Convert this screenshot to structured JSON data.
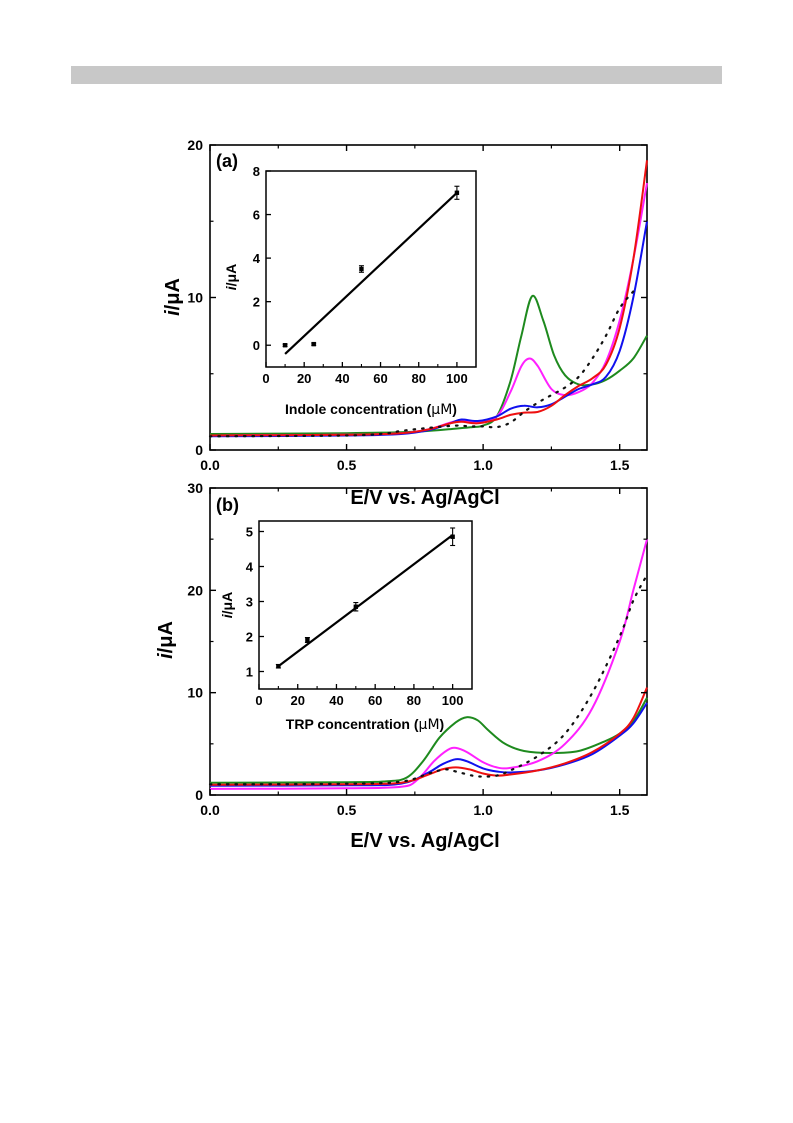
{
  "chart_data": [
    {
      "type": "line",
      "panel_label": "(a)",
      "xlabel": "E/V vs. Ag/AgCl",
      "ylabel": "i/μA",
      "ylabel_italic": "i",
      "ylabel_unit": "/μA",
      "xlim": [
        0,
        1.6
      ],
      "ylim": [
        0,
        20
      ],
      "xticks": [
        "0.0",
        "0.5",
        "1.0",
        "1.5"
      ],
      "yticks": [
        "0",
        "10",
        "20"
      ],
      "colors": {
        "green": "#1e8a1e",
        "magenta": "#ff20ff",
        "blue": "#1010ee",
        "red": "#ee1010",
        "dotted": "#111111"
      },
      "series": [
        {
          "color": "green",
          "points": [
            [
              0,
              1.05
            ],
            [
              0.5,
              1.1
            ],
            [
              0.75,
              1.2
            ],
            [
              0.9,
              1.4
            ],
            [
              0.96,
              1.5
            ],
            [
              1.0,
              1.6
            ],
            [
              1.05,
              2.2
            ],
            [
              1.1,
              4.5
            ],
            [
              1.14,
              7.5
            ],
            [
              1.18,
              10.1
            ],
            [
              1.22,
              8.5
            ],
            [
              1.26,
              6.2
            ],
            [
              1.3,
              4.9
            ],
            [
              1.35,
              4.3
            ],
            [
              1.4,
              4.3
            ],
            [
              1.45,
              4.6
            ],
            [
              1.5,
              5.2
            ],
            [
              1.55,
              6.0
            ],
            [
              1.6,
              7.5
            ]
          ]
        },
        {
          "color": "magenta",
          "points": [
            [
              0,
              0.95
            ],
            [
              0.5,
              1.0
            ],
            [
              0.7,
              1.1
            ],
            [
              0.8,
              1.35
            ],
            [
              0.88,
              1.8
            ],
            [
              0.92,
              1.95
            ],
            [
              0.98,
              1.8
            ],
            [
              1.05,
              2.2
            ],
            [
              1.1,
              3.8
            ],
            [
              1.14,
              5.5
            ],
            [
              1.17,
              6.0
            ],
            [
              1.2,
              5.5
            ],
            [
              1.25,
              4.0
            ],
            [
              1.3,
              3.6
            ],
            [
              1.35,
              3.8
            ],
            [
              1.4,
              4.4
            ],
            [
              1.45,
              5.8
            ],
            [
              1.5,
              8.5
            ],
            [
              1.55,
              12.5
            ],
            [
              1.6,
              17.5
            ]
          ]
        },
        {
          "color": "blue",
          "points": [
            [
              0,
              0.9
            ],
            [
              0.5,
              0.95
            ],
            [
              0.7,
              1.05
            ],
            [
              0.8,
              1.3
            ],
            [
              0.88,
              1.75
            ],
            [
              0.92,
              2.0
            ],
            [
              0.98,
              1.9
            ],
            [
              1.05,
              2.2
            ],
            [
              1.1,
              2.7
            ],
            [
              1.15,
              2.9
            ],
            [
              1.2,
              2.8
            ],
            [
              1.25,
              3.0
            ],
            [
              1.3,
              3.5
            ],
            [
              1.35,
              4.0
            ],
            [
              1.4,
              4.3
            ],
            [
              1.45,
              4.8
            ],
            [
              1.5,
              6.5
            ],
            [
              1.55,
              10.0
            ],
            [
              1.6,
              15.0
            ]
          ]
        },
        {
          "color": "red",
          "points": [
            [
              0,
              0.95
            ],
            [
              0.5,
              1.0
            ],
            [
              0.7,
              1.1
            ],
            [
              0.8,
              1.35
            ],
            [
              0.88,
              1.75
            ],
            [
              0.92,
              1.85
            ],
            [
              0.98,
              1.75
            ],
            [
              1.05,
              2.0
            ],
            [
              1.1,
              2.3
            ],
            [
              1.15,
              2.45
            ],
            [
              1.2,
              2.5
            ],
            [
              1.25,
              2.9
            ],
            [
              1.3,
              3.6
            ],
            [
              1.35,
              4.2
            ],
            [
              1.4,
              4.7
            ],
            [
              1.45,
              5.6
            ],
            [
              1.5,
              8.0
            ],
            [
              1.55,
              12.5
            ],
            [
              1.6,
              19.0
            ]
          ]
        },
        {
          "color": "dotted",
          "dashed": true,
          "points": [
            [
              0,
              0.9
            ],
            [
              0.5,
              0.95
            ],
            [
              0.65,
              1.1
            ],
            [
              0.7,
              1.25
            ],
            [
              0.8,
              1.45
            ],
            [
              0.9,
              1.6
            ],
            [
              0.95,
              1.55
            ],
            [
              1.0,
              1.55
            ],
            [
              1.05,
              1.5
            ],
            [
              1.1,
              1.8
            ],
            [
              1.15,
              2.5
            ],
            [
              1.2,
              3.1
            ],
            [
              1.25,
              3.6
            ],
            [
              1.3,
              4.1
            ],
            [
              1.35,
              4.8
            ],
            [
              1.4,
              6.0
            ],
            [
              1.45,
              7.5
            ],
            [
              1.5,
              9.3
            ],
            [
              1.55,
              10.4
            ]
          ]
        }
      ],
      "inset": {
        "type": "scatter",
        "xlabel": "Indole concentration (μM)",
        "xlabel_prefix": "Indole concentration (",
        "xlabel_unit": "μM",
        "xlabel_suffix": ")",
        "ylabel": "i/μA",
        "ylabel_italic": "i",
        "ylabel_unit": "/μA",
        "xlim": [
          0,
          110
        ],
        "ylim": [
          -1,
          8
        ],
        "xticks": [
          "0",
          "20",
          "40",
          "60",
          "80",
          "100"
        ],
        "yticks": [
          "0",
          "2",
          "4",
          "6",
          "8"
        ],
        "x": [
          10,
          25,
          50,
          100
        ],
        "y": [
          0.0,
          0.05,
          3.5,
          7.0
        ],
        "yerr": [
          0.05,
          0.05,
          0.15,
          0.3
        ],
        "fit": [
          [
            10,
            -0.4
          ],
          [
            100,
            7.0
          ]
        ]
      }
    },
    {
      "type": "line",
      "panel_label": "(b)",
      "xlabel": "E/V vs. Ag/AgCl",
      "ylabel": "i/μA",
      "ylabel_italic": "i",
      "ylabel_unit": "/μA",
      "xlim": [
        0,
        1.6
      ],
      "ylim": [
        0,
        30
      ],
      "xticks": [
        "0.0",
        "0.5",
        "1.0",
        "1.5"
      ],
      "yticks": [
        "0",
        "10",
        "20",
        "30"
      ],
      "colors": {
        "green": "#1e8a1e",
        "magenta": "#ff20ff",
        "blue": "#1010ee",
        "red": "#ee1010",
        "dotted": "#111111"
      },
      "series": [
        {
          "color": "green",
          "points": [
            [
              0,
              1.2
            ],
            [
              0.5,
              1.25
            ],
            [
              0.65,
              1.35
            ],
            [
              0.72,
              1.7
            ],
            [
              0.78,
              3.3
            ],
            [
              0.84,
              5.6
            ],
            [
              0.9,
              7.1
            ],
            [
              0.94,
              7.6
            ],
            [
              0.98,
              7.3
            ],
            [
              1.02,
              6.3
            ],
            [
              1.08,
              5.0
            ],
            [
              1.15,
              4.3
            ],
            [
              1.25,
              4.1
            ],
            [
              1.35,
              4.3
            ],
            [
              1.45,
              5.3
            ],
            [
              1.5,
              6.0
            ],
            [
              1.55,
              7.2
            ],
            [
              1.6,
              9.5
            ]
          ]
        },
        {
          "color": "magenta",
          "points": [
            [
              0,
              0.6
            ],
            [
              0.5,
              0.65
            ],
            [
              0.7,
              0.8
            ],
            [
              0.76,
              1.5
            ],
            [
              0.82,
              3.3
            ],
            [
              0.87,
              4.4
            ],
            [
              0.9,
              4.6
            ],
            [
              0.94,
              4.2
            ],
            [
              1.0,
              3.2
            ],
            [
              1.05,
              2.7
            ],
            [
              1.1,
              2.65
            ],
            [
              1.2,
              3.3
            ],
            [
              1.3,
              5.0
            ],
            [
              1.4,
              8.5
            ],
            [
              1.5,
              15.0
            ],
            [
              1.55,
              20.0
            ],
            [
              1.6,
              25.0
            ]
          ]
        },
        {
          "color": "blue",
          "points": [
            [
              0,
              0.9
            ],
            [
              0.5,
              0.95
            ],
            [
              0.7,
              1.1
            ],
            [
              0.8,
              2.2
            ],
            [
              0.85,
              3.0
            ],
            [
              0.9,
              3.5
            ],
            [
              0.94,
              3.3
            ],
            [
              1.0,
              2.6
            ],
            [
              1.05,
              2.3
            ],
            [
              1.1,
              2.2
            ],
            [
              1.2,
              2.4
            ],
            [
              1.3,
              3.0
            ],
            [
              1.4,
              4.0
            ],
            [
              1.5,
              5.8
            ],
            [
              1.55,
              7.0
            ],
            [
              1.6,
              9.0
            ]
          ]
        },
        {
          "color": "red",
          "points": [
            [
              0,
              1.0
            ],
            [
              0.5,
              1.05
            ],
            [
              0.7,
              1.2
            ],
            [
              0.8,
              2.0
            ],
            [
              0.85,
              2.5
            ],
            [
              0.9,
              2.7
            ],
            [
              0.95,
              2.5
            ],
            [
              1.0,
              2.1
            ],
            [
              1.05,
              1.9
            ],
            [
              1.1,
              2.0
            ],
            [
              1.2,
              2.4
            ],
            [
              1.3,
              3.1
            ],
            [
              1.4,
              4.2
            ],
            [
              1.5,
              6.0
            ],
            [
              1.55,
              7.5
            ],
            [
              1.6,
              10.5
            ]
          ]
        },
        {
          "color": "dotted",
          "dashed": true,
          "points": [
            [
              0,
              1.05
            ],
            [
              0.5,
              1.1
            ],
            [
              0.7,
              1.3
            ],
            [
              0.8,
              2.1
            ],
            [
              0.86,
              2.5
            ],
            [
              0.9,
              2.3
            ],
            [
              0.96,
              1.9
            ],
            [
              1.0,
              1.8
            ],
            [
              1.05,
              1.9
            ],
            [
              1.1,
              2.4
            ],
            [
              1.2,
              3.8
            ],
            [
              1.3,
              6.0
            ],
            [
              1.4,
              10.0
            ],
            [
              1.5,
              15.5
            ],
            [
              1.55,
              19.0
            ],
            [
              1.6,
              21.5
            ]
          ]
        }
      ],
      "inset": {
        "type": "scatter",
        "xlabel": "TRP concentration (μM)",
        "xlabel_prefix": "TRP concentration (",
        "xlabel_unit": "μM",
        "xlabel_suffix": ")",
        "ylabel": "i/μA",
        "ylabel_italic": "i",
        "ylabel_unit": "/μA",
        "xlim": [
          0,
          110
        ],
        "ylim": [
          0.5,
          5.3
        ],
        "xticks": [
          "0",
          "20",
          "40",
          "60",
          "80",
          "100"
        ],
        "yticks": [
          "1",
          "2",
          "3",
          "4",
          "5"
        ],
        "x": [
          10,
          25,
          50,
          100
        ],
        "y": [
          1.15,
          1.9,
          2.85,
          4.85
        ],
        "yerr": [
          0.05,
          0.07,
          0.12,
          0.25
        ],
        "fit": [
          [
            10,
            1.15
          ],
          [
            100,
            4.9
          ]
        ]
      }
    }
  ]
}
